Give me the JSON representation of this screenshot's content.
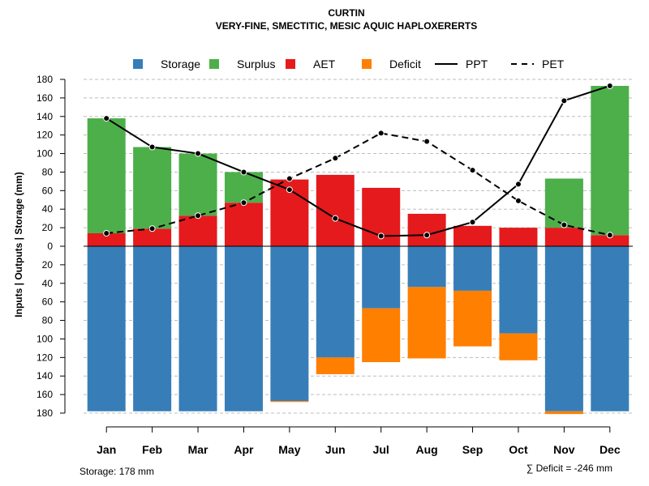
{
  "chart_data": {
    "type": "bar",
    "title": "CURTIN",
    "subtitle": "VERY-FINE, SMECTITIC, MESIC AQUIC HAPLOXERERTS",
    "ylabel": "Inputs | Outputs | Storage     (mm)",
    "categories": [
      "Jan",
      "Feb",
      "Mar",
      "Apr",
      "May",
      "Jun",
      "Jul",
      "Aug",
      "Sep",
      "Oct",
      "Nov",
      "Dec"
    ],
    "ylim": [
      -180,
      180
    ],
    "yticks": [
      180,
      160,
      140,
      120,
      100,
      80,
      60,
      40,
      20,
      0,
      -20,
      -40,
      -60,
      -80,
      -100,
      -120,
      -140,
      -160,
      -180
    ],
    "legend": [
      {
        "label": "Storage",
        "color": "#377eb8",
        "kind": "box"
      },
      {
        "label": "Surplus",
        "color": "#4daf4a",
        "kind": "box"
      },
      {
        "label": "AET",
        "color": "#e41a1c",
        "kind": "box"
      },
      {
        "label": "Deficit",
        "color": "#ff7f00",
        "kind": "box"
      },
      {
        "label": "PPT",
        "color": "#000000",
        "kind": "solid"
      },
      {
        "label": "PET",
        "color": "#000000",
        "kind": "dashed"
      }
    ],
    "colors": {
      "storage": "#377eb8",
      "surplus": "#4daf4a",
      "aet": "#e41a1c",
      "deficit": "#ff7f00"
    },
    "series": [
      {
        "name": "AET",
        "values": [
          14,
          19,
          33,
          47,
          72,
          77,
          63,
          35,
          22,
          20,
          20,
          12
        ]
      },
      {
        "name": "Surplus",
        "values": [
          124,
          88,
          67,
          33,
          0,
          0,
          0,
          0,
          0,
          0,
          53,
          161
        ]
      },
      {
        "name": "Storage",
        "values": [
          178,
          178,
          178,
          178,
          167,
          120,
          67,
          44,
          48,
          94,
          178,
          178
        ]
      },
      {
        "name": "Deficit",
        "values": [
          0,
          0,
          0,
          0,
          1,
          18,
          58,
          77,
          60,
          29,
          3,
          0
        ]
      },
      {
        "name": "PPT",
        "values": [
          138,
          107,
          100,
          80,
          61,
          30,
          11,
          12,
          26,
          67,
          157,
          173
        ]
      },
      {
        "name": "PET",
        "values": [
          14,
          19,
          33,
          47,
          73,
          95,
          122,
          113,
          82,
          49,
          23,
          12
        ]
      }
    ],
    "footer_left": "Storage: 178 mm",
    "footer_right": "∑ Deficit = -246 mm",
    "grid": true,
    "legend_position": "top"
  }
}
